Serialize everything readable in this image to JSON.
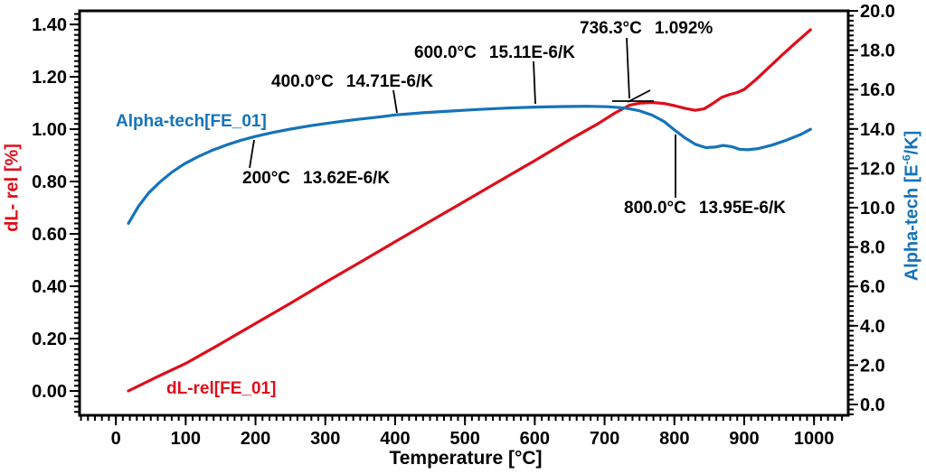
{
  "colors": {
    "red": "#e00d1a",
    "blue": "#1573ba",
    "black": "#000000",
    "background": "#ffffff"
  },
  "chart_data": {
    "type": "line",
    "title": "",
    "xlabel": "Temperature [°C]",
    "ylabel_left": "dL- rel [%]",
    "ylabel_right_parts": {
      "prefix": "Alpha-tech [E",
      "sup": "-6",
      "suffix": "/K]"
    },
    "legend_position": "inline-labels",
    "grid": "off",
    "xlim": [
      -52,
      1049
    ],
    "ylim_left": [
      -0.093,
      1.452
    ],
    "ylim_right": [
      -0.55,
      20.0
    ],
    "x_tick_values": [
      0,
      100,
      200,
      300,
      400,
      500,
      600,
      700,
      800,
      900,
      1000
    ],
    "x_tick_labels": [
      "0",
      "100",
      "200",
      "300",
      "400",
      "500",
      "600",
      "700",
      "800",
      "900",
      "1000"
    ],
    "left_tick_values": [
      0.0,
      0.2,
      0.4,
      0.6,
      0.8,
      1.0,
      1.2,
      1.4
    ],
    "left_tick_labels": [
      "0.00",
      "0.20",
      "0.40",
      "0.60",
      "0.80",
      "1.00",
      "1.20",
      "1.40"
    ],
    "right_tick_values": [
      0,
      2,
      4,
      6,
      8,
      10,
      12,
      14,
      16,
      18,
      20
    ],
    "right_tick_labels": [
      "0.0",
      "2.0",
      "4.0",
      "6.0",
      "8.0",
      "10.0",
      "12.0",
      "14.0",
      "16.0",
      "18.0",
      "20.0"
    ],
    "minor_ticks": {
      "x": {
        "start": -50,
        "end": 1040,
        "step": 10
      },
      "left": {
        "start": -0.08,
        "end": 1.44,
        "step": 0.02
      },
      "right": {
        "start": -0.5,
        "end": 20.0,
        "step": 0.25
      }
    },
    "series": [
      {
        "name": "dL-rel[FE_01]",
        "axis": "left",
        "color": "#e00d1a",
        "x": [
          18,
          60,
          100,
          150,
          200,
          250,
          300,
          350,
          400,
          450,
          500,
          550,
          600,
          650,
          690,
          715,
          736,
          752,
          768,
          785,
          800,
          815,
          830,
          843,
          856,
          868,
          880,
          890,
          900,
          915,
          935,
          955,
          975,
          995
        ],
        "y": [
          0.0,
          0.055,
          0.105,
          0.18,
          0.258,
          0.335,
          0.415,
          0.492,
          0.57,
          0.648,
          0.725,
          0.803,
          0.88,
          0.96,
          1.02,
          1.062,
          1.092,
          1.1,
          1.102,
          1.098,
          1.09,
          1.08,
          1.072,
          1.078,
          1.1,
          1.122,
          1.133,
          1.14,
          1.152,
          1.185,
          1.235,
          1.285,
          1.333,
          1.38
        ]
      },
      {
        "name": "Alpha-tech[FE_01]",
        "axis": "right",
        "color": "#1573ba",
        "x": [
          18,
          32,
          47,
          63,
          80,
          98,
          117,
          137,
          158,
          180,
          200,
          225,
          250,
          280,
          310,
          345,
          380,
          400,
          440,
          480,
          520,
          560,
          600,
          640,
          675,
          705,
          730,
          750,
          768,
          785,
          800,
          815,
          830,
          845,
          858,
          870,
          882,
          893,
          905,
          920,
          940,
          960,
          980,
          995
        ],
        "y": [
          9.2,
          10.05,
          10.75,
          11.3,
          11.8,
          12.22,
          12.58,
          12.9,
          13.18,
          13.43,
          13.62,
          13.82,
          13.99,
          14.17,
          14.32,
          14.48,
          14.62,
          14.71,
          14.82,
          14.91,
          14.99,
          15.06,
          15.11,
          15.14,
          15.15,
          15.13,
          15.06,
          14.92,
          14.7,
          14.38,
          13.95,
          13.55,
          13.22,
          13.05,
          13.08,
          13.16,
          13.1,
          12.97,
          12.94,
          13.0,
          13.18,
          13.42,
          13.7,
          13.98
        ]
      }
    ],
    "annotations": [
      {
        "temp": "200°C",
        "value": "13.62E-6/K",
        "lines": [
          [
            281,
            155,
            276,
            186
          ]
        ]
      },
      {
        "temp": "400.0°C",
        "value": "14.71E-6/K",
        "lines": [
          [
            435,
            100,
            439,
            125
          ]
        ]
      },
      {
        "temp": "600.0°C",
        "value": "15.11E-6/K",
        "lines": [
          [
            590,
            68,
            592,
            115
          ]
        ]
      },
      {
        "temp": "736.3°C",
        "value": "1.092%",
        "lines": [
          [
            693,
            42,
            696,
            109
          ],
          [
            677,
            112,
            723,
            112
          ],
          [
            719,
            100,
            694,
            113
          ]
        ]
      },
      {
        "temp": "800.0°C",
        "value": "13.95E-6/K",
        "lines": [
          [
            747,
            149,
            747,
            219
          ]
        ]
      }
    ]
  }
}
